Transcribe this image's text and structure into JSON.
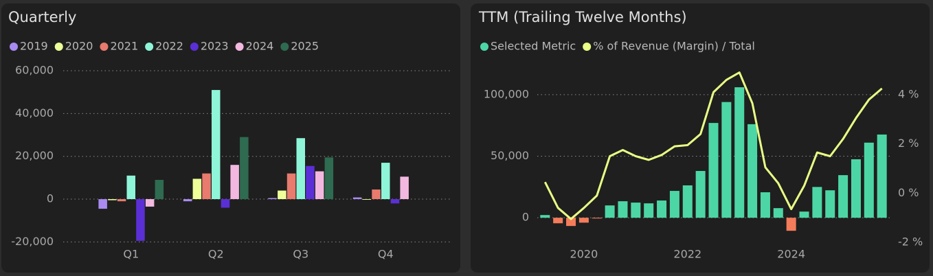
{
  "chart_data": [
    {
      "type": "bar",
      "title": "Quarterly",
      "categories": [
        "Q1",
        "Q2",
        "Q3",
        "Q4"
      ],
      "series": [
        {
          "name": "2019",
          "color": "#a98af0",
          "values": [
            -4500,
            -1000,
            500,
            800
          ]
        },
        {
          "name": "2020",
          "color": "#eeff99",
          "values": [
            -500,
            9500,
            4000,
            -300
          ]
        },
        {
          "name": "2021",
          "color": "#e87a6e",
          "values": [
            -1000,
            12000,
            12000,
            4500
          ]
        },
        {
          "name": "2022",
          "color": "#8ef5d8",
          "values": [
            11000,
            51000,
            28500,
            17000
          ]
        },
        {
          "name": "2023",
          "color": "#5b2fd6",
          "values": [
            -19500,
            -4000,
            15500,
            -2000
          ]
        },
        {
          "name": "2024",
          "color": "#f2b8e0",
          "values": [
            -3500,
            16000,
            13000,
            10500
          ]
        },
        {
          "name": "2025",
          "color": "#2e6b50",
          "values": [
            9000,
            29000,
            19500,
            null
          ]
        }
      ],
      "ylim": [
        -22000,
        62000
      ],
      "yticks": [
        {
          "value": -20000,
          "label": "-20,000"
        },
        0,
        {
          "value": 20000,
          "label": "20,000"
        },
        {
          "value": 40000,
          "label": "40,000"
        },
        {
          "value": 60000,
          "label": "60,000"
        }
      ],
      "grid": true
    },
    {
      "type": "combo",
      "title": "TTM (Trailing Twelve Months)",
      "x": [
        2019.25,
        2019.5,
        2019.75,
        2020,
        2020.25,
        2020.5,
        2020.75,
        2021,
        2021.25,
        2021.5,
        2021.75,
        2022,
        2022.25,
        2022.5,
        2022.75,
        2023,
        2023.25,
        2023.5,
        2023.75,
        2024,
        2024.25,
        2024.5,
        2024.75,
        2025,
        2025.25,
        2025.5,
        2025.75
      ],
      "series": [
        {
          "name": "Selected Metric",
          "type": "bar",
          "color": "#4dd6a5",
          "negative_color": "#f47c5a",
          "values": [
            2200,
            -4500,
            -6700,
            -4000,
            -600,
            10000,
            13400,
            12300,
            11700,
            14000,
            21800,
            26300,
            38000,
            77000,
            94000,
            106000,
            76000,
            20700,
            7800,
            -10600,
            5000,
            25000,
            22300,
            34600,
            47500,
            61000,
            67600
          ]
        },
        {
          "name": "% of Revenue (Margin) / Total",
          "type": "line",
          "axis": "y2",
          "color": "#eaff85",
          "values": [
            0.45,
            -0.6,
            -1.05,
            -0.6,
            -0.1,
            1.5,
            1.75,
            1.5,
            1.35,
            1.55,
            1.9,
            1.95,
            2.4,
            4.1,
            4.6,
            4.9,
            3.65,
            1.05,
            0.4,
            -0.65,
            0.3,
            1.65,
            1.5,
            2.2,
            3.05,
            3.8,
            4.25
          ]
        }
      ],
      "xlim": [
        2019.1,
        2025.9
      ],
      "xticks": [
        2020,
        2022,
        2024
      ],
      "ylim": [
        -20000,
        120000
      ],
      "yticks": [
        0,
        {
          "value": 50000,
          "label": "50,000"
        },
        {
          "value": 100000,
          "label": "100,000"
        }
      ],
      "y2lim": [
        -2,
        5
      ],
      "y2ticks": [
        {
          "value": -2,
          "label": "-2 %"
        },
        {
          "value": 0,
          "label": "0 %"
        },
        {
          "value": 2,
          "label": "2 %"
        },
        {
          "value": 4,
          "label": "4 %"
        }
      ],
      "grid": true
    }
  ]
}
